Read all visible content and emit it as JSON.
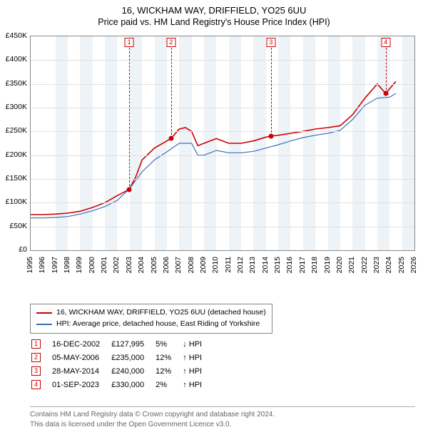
{
  "title": "16, WICKHAM WAY, DRIFFIELD, YO25 6UU",
  "subtitle": "Price paid vs. HM Land Registry's House Price Index (HPI)",
  "chart": {
    "type": "line",
    "x_min": 1995,
    "x_max": 2026,
    "y_min": 0,
    "y_max": 450000,
    "y_tick_step": 50000,
    "y_tick_labels": [
      "£0",
      "£50K",
      "£100K",
      "£150K",
      "£200K",
      "£250K",
      "£300K",
      "£350K",
      "£400K",
      "£450K"
    ],
    "x_ticks": [
      1995,
      1996,
      1997,
      1998,
      1999,
      2000,
      2001,
      2002,
      2003,
      2004,
      2005,
      2006,
      2007,
      2008,
      2009,
      2010,
      2011,
      2012,
      2013,
      2014,
      2015,
      2016,
      2017,
      2018,
      2019,
      2020,
      2021,
      2022,
      2023,
      2024,
      2025,
      2026
    ],
    "band_years": [
      [
        1997,
        1998
      ],
      [
        1999,
        2000
      ],
      [
        2001,
        2002
      ],
      [
        2003,
        2004
      ],
      [
        2005,
        2006
      ],
      [
        2007,
        2008
      ],
      [
        2009,
        2010
      ],
      [
        2011,
        2012
      ],
      [
        2013,
        2014
      ],
      [
        2015,
        2016
      ],
      [
        2017,
        2018
      ],
      [
        2019,
        2020
      ],
      [
        2021,
        2022
      ],
      [
        2023,
        2024
      ],
      [
        2025,
        2026
      ]
    ],
    "grid_color": "#e0e0e0",
    "band_color": "#eef3f8",
    "series": [
      {
        "name": "property",
        "label": "16, WICKHAM WAY, DRIFFIELD, YO25 6UU (detached house)",
        "color": "#cc0000",
        "width": 1.6,
        "points": [
          [
            1995,
            75000
          ],
          [
            1996,
            75000
          ],
          [
            1997,
            76000
          ],
          [
            1998,
            78000
          ],
          [
            1999,
            82000
          ],
          [
            2000,
            90000
          ],
          [
            2001,
            100000
          ],
          [
            2002,
            115000
          ],
          [
            2002.96,
            127995
          ],
          [
            2003.5,
            155000
          ],
          [
            2004,
            190000
          ],
          [
            2005,
            215000
          ],
          [
            2006,
            230000
          ],
          [
            2006.34,
            235000
          ],
          [
            2007,
            255000
          ],
          [
            2007.5,
            258000
          ],
          [
            2008,
            250000
          ],
          [
            2008.5,
            220000
          ],
          [
            2009,
            225000
          ],
          [
            2010,
            235000
          ],
          [
            2011,
            225000
          ],
          [
            2012,
            225000
          ],
          [
            2013,
            230000
          ],
          [
            2014,
            238000
          ],
          [
            2014.41,
            240000
          ],
          [
            2015,
            242000
          ],
          [
            2016,
            246000
          ],
          [
            2017,
            250000
          ],
          [
            2018,
            255000
          ],
          [
            2019,
            258000
          ],
          [
            2020,
            262000
          ],
          [
            2021,
            285000
          ],
          [
            2022,
            320000
          ],
          [
            2023,
            350000
          ],
          [
            2023.67,
            330000
          ],
          [
            2024,
            340000
          ],
          [
            2024.5,
            355000
          ]
        ]
      },
      {
        "name": "hpi",
        "label": "HPI: Average price, detached house, East Riding of Yorkshire",
        "color": "#3b6fb6",
        "width": 1.2,
        "points": [
          [
            1995,
            68000
          ],
          [
            1996,
            68000
          ],
          [
            1997,
            69000
          ],
          [
            1998,
            71000
          ],
          [
            1999,
            76000
          ],
          [
            2000,
            83000
          ],
          [
            2001,
            92000
          ],
          [
            2002,
            105000
          ],
          [
            2003,
            130000
          ],
          [
            2004,
            165000
          ],
          [
            2005,
            190000
          ],
          [
            2006,
            207000
          ],
          [
            2007,
            225000
          ],
          [
            2008,
            225000
          ],
          [
            2008.5,
            200000
          ],
          [
            2009,
            200000
          ],
          [
            2010,
            210000
          ],
          [
            2011,
            205000
          ],
          [
            2012,
            205000
          ],
          [
            2013,
            208000
          ],
          [
            2014,
            215000
          ],
          [
            2015,
            222000
          ],
          [
            2016,
            230000
          ],
          [
            2017,
            237000
          ],
          [
            2018,
            242000
          ],
          [
            2019,
            246000
          ],
          [
            2020,
            252000
          ],
          [
            2021,
            275000
          ],
          [
            2022,
            305000
          ],
          [
            2023,
            320000
          ],
          [
            2024,
            322000
          ],
          [
            2024.5,
            330000
          ]
        ]
      }
    ],
    "sale_markers": [
      {
        "n": "1",
        "year": 2002.96,
        "price": 127995,
        "date": "16-DEC-2002",
        "price_fmt": "£127,995",
        "pct": "5%",
        "dir": "↓"
      },
      {
        "n": "2",
        "year": 2006.34,
        "price": 235000,
        "date": "05-MAY-2006",
        "price_fmt": "£235,000",
        "pct": "12%",
        "dir": "↑"
      },
      {
        "n": "3",
        "year": 2014.41,
        "price": 240000,
        "date": "28-MAY-2014",
        "price_fmt": "£240,000",
        "pct": "12%",
        "dir": "↑"
      },
      {
        "n": "4",
        "year": 2023.67,
        "price": 330000,
        "date": "01-SEP-2023",
        "price_fmt": "£330,000",
        "pct": "2%",
        "dir": "↑"
      }
    ],
    "hpi_suffix": " HPI"
  },
  "footer": {
    "line1": "Contains HM Land Registry data © Crown copyright and database right 2024.",
    "line2": "This data is licensed under the Open Government Licence v3.0."
  }
}
